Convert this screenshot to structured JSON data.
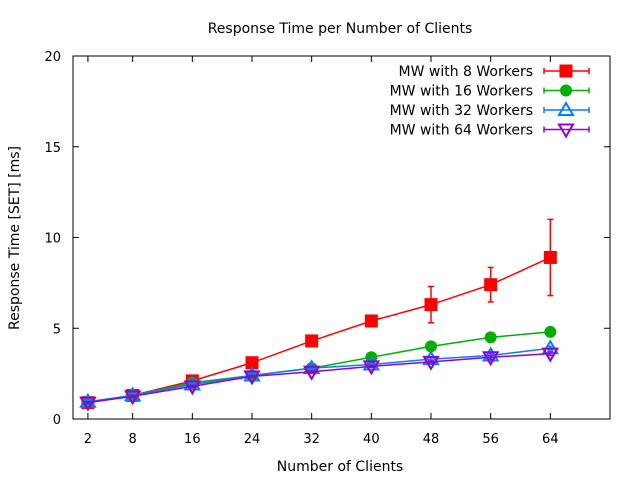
{
  "chart_data": {
    "type": "line",
    "title": "Response Time per Number of Clients",
    "xlabel": "Number of Clients",
    "ylabel": "Response Time [SET] [ms]",
    "x": [
      2,
      8,
      16,
      24,
      32,
      40,
      48,
      56,
      64
    ],
    "xlim": [
      0,
      72
    ],
    "ylim": [
      0,
      20
    ],
    "x_ticks": [
      2,
      8,
      16,
      24,
      32,
      40,
      48,
      56,
      64
    ],
    "y_ticks": [
      0,
      5,
      10,
      15,
      20
    ],
    "grid": false,
    "legend_position": "top-right",
    "series": [
      {
        "name": "MW with 8 Workers",
        "color": "#ff0000",
        "marker": "filled-square",
        "values": [
          0.9,
          1.3,
          2.1,
          3.1,
          4.3,
          5.4,
          6.3,
          7.4,
          8.9
        ],
        "error": [
          0.1,
          0.1,
          0.1,
          0.15,
          0.2,
          0.2,
          1.0,
          0.95,
          2.1
        ]
      },
      {
        "name": "MW with 16 Workers",
        "color": "#00b000",
        "marker": "filled-circle",
        "values": [
          0.9,
          1.3,
          2.0,
          2.4,
          2.8,
          3.4,
          4.0,
          4.5,
          4.8
        ],
        "error": [
          0.05,
          0.05,
          0.05,
          0.05,
          0.05,
          0.1,
          0.1,
          0.1,
          0.1
        ]
      },
      {
        "name": "MW with 32 Workers",
        "color": "#0080ff",
        "marker": "open-triangle-up",
        "values": [
          0.95,
          1.3,
          1.9,
          2.4,
          2.8,
          3.0,
          3.3,
          3.5,
          3.9
        ],
        "error": [
          0.05,
          0.05,
          0.05,
          0.05,
          0.05,
          0.05,
          0.1,
          0.1,
          0.1
        ]
      },
      {
        "name": "MW with 64 Workers",
        "color": "#9400d3",
        "marker": "open-triangle-down",
        "values": [
          0.9,
          1.25,
          1.8,
          2.35,
          2.6,
          2.9,
          3.15,
          3.4,
          3.6
        ],
        "error": [
          0.05,
          0.05,
          0.05,
          0.05,
          0.05,
          0.05,
          0.05,
          0.1,
          0.1
        ]
      }
    ]
  }
}
